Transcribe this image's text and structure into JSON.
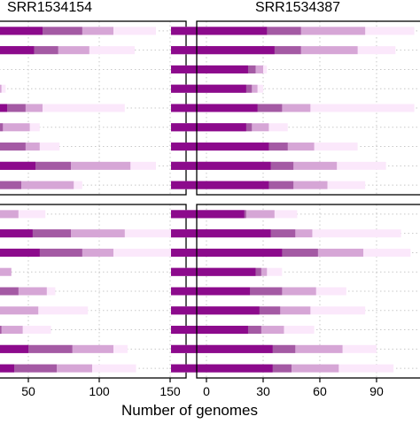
{
  "chart_data": {
    "type": "bar",
    "orientation": "horizontal",
    "stacked": true,
    "xlabel": "Number of genomes",
    "colors": [
      "#8c0a8c",
      "#a45aa4",
      "#d6a6d6",
      "#fbe8fb"
    ],
    "grid": true,
    "panels": [
      {
        "title": "SRR1534154",
        "xlim": [
          30,
          160
        ],
        "xticks": [
          50,
          100,
          150
        ],
        "rows": [
          [
            60,
            88,
            110,
            140
          ],
          [
            54,
            71,
            93,
            125
          ],
          [
            30,
            30,
            30,
            30
          ],
          [
            25,
            29,
            31,
            34
          ],
          [
            35,
            48,
            60,
            118
          ],
          [
            25,
            32,
            51,
            58
          ],
          [
            30,
            48,
            58,
            72
          ],
          [
            55,
            80,
            122,
            140
          ],
          [
            27,
            45,
            82,
            88
          ],
          [
            20,
            21,
            43,
            62
          ],
          [
            53,
            80,
            118,
            155
          ],
          [
            58,
            88,
            110,
            160
          ],
          [
            20,
            25,
            38,
            38
          ],
          [
            23,
            43,
            63,
            69
          ],
          [
            20,
            29,
            57,
            92
          ],
          [
            20,
            31,
            46,
            66
          ],
          [
            50,
            81,
            110,
            120
          ],
          [
            40,
            70,
            95,
            126
          ]
        ]
      },
      {
        "title": "SRR1534387",
        "xlim": [
          0,
          113
        ],
        "xticks": [
          0,
          30,
          60,
          90
        ],
        "rows": [
          [
            32,
            50,
            84,
            110
          ],
          [
            36,
            50,
            80,
            100
          ],
          [
            22,
            26,
            30,
            32
          ],
          [
            21,
            24,
            27,
            30
          ],
          [
            27,
            40,
            55,
            110
          ],
          [
            21,
            24,
            33,
            43
          ],
          [
            33,
            43,
            57,
            80
          ],
          [
            34,
            46,
            69,
            95
          ],
          [
            33,
            46,
            64,
            84
          ],
          [
            20,
            21,
            36,
            48
          ],
          [
            34,
            47,
            56,
            103
          ],
          [
            40,
            59,
            83,
            108
          ],
          [
            26,
            29,
            32,
            40
          ],
          [
            23,
            40,
            58,
            74
          ],
          [
            28,
            39,
            55,
            84
          ],
          [
            22,
            29,
            41,
            57
          ],
          [
            35,
            47,
            72,
            90
          ],
          [
            35,
            45,
            70,
            99
          ]
        ]
      }
    ]
  }
}
